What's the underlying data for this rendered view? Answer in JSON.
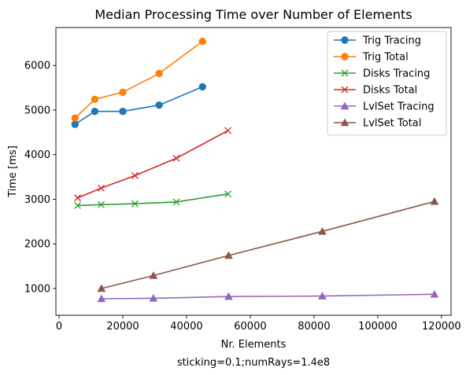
{
  "chart_data": {
    "type": "line",
    "title": "Median Processing Time over Number of Elements",
    "xlabel": "Nr. Elements",
    "ylabel": "Time [ms]",
    "caption": "sticking=0.1;numRays=1.4e8",
    "xlim": [
      -1000,
      123000
    ],
    "ylim": [
      400,
      6850
    ],
    "xticks": [
      0,
      20000,
      40000,
      60000,
      80000,
      100000,
      120000
    ],
    "xtick_labels": [
      "0",
      "20000",
      "40000",
      "60000",
      "80000",
      "100000",
      "120000"
    ],
    "yticks": [
      1000,
      2000,
      3000,
      4000,
      5000,
      6000
    ],
    "ytick_labels": [
      "1000",
      "2000",
      "3000",
      "4000",
      "5000",
      "6000"
    ],
    "grid": false,
    "legend_position": "upper right",
    "series": [
      {
        "name": "Trig Tracing",
        "color": "#1f77b4",
        "marker": "circle",
        "x": [
          5000,
          11200,
          20000,
          31400,
          45000
        ],
        "y": [
          4680,
          4970,
          4970,
          5110,
          5520
        ]
      },
      {
        "name": "Trig Total",
        "color": "#ff7f0e",
        "marker": "circle",
        "x": [
          5000,
          11200,
          20000,
          31400,
          45000
        ],
        "y": [
          4820,
          5240,
          5400,
          5820,
          6540
        ]
      },
      {
        "name": "Disks Tracing",
        "color": "#2ca02c",
        "marker": "x",
        "x": [
          5800,
          13200,
          23800,
          36800,
          53000
        ],
        "y": [
          2860,
          2880,
          2900,
          2940,
          3120
        ]
      },
      {
        "name": "Disks Total",
        "color": "#d62728",
        "marker": "x",
        "x": [
          5800,
          13200,
          23800,
          36800,
          53000
        ],
        "y": [
          3030,
          3250,
          3530,
          3920,
          4540
        ]
      },
      {
        "name": "LvlSet Tracing",
        "color": "#9467bd",
        "marker": "triangle",
        "x": [
          13300,
          29600,
          53200,
          82600,
          117800
        ],
        "y": [
          770,
          780,
          820,
          830,
          870
        ]
      },
      {
        "name": "LvlSet Total",
        "color": "#8c564b",
        "marker": "triangle",
        "x": [
          13300,
          29600,
          53200,
          82600,
          117800
        ],
        "y": [
          1000,
          1290,
          1740,
          2280,
          2950
        ]
      }
    ]
  }
}
